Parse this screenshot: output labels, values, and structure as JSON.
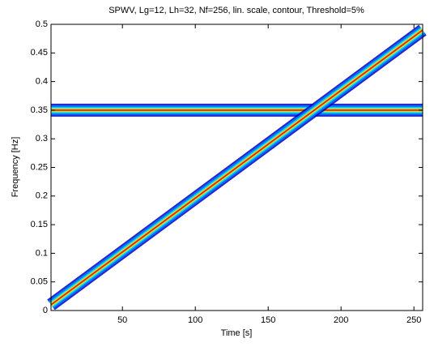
{
  "chart_data": {
    "type": "contour",
    "title": "SPWV, Lg=12, Lh=32, Nf=256, lin. scale, contour, Threshold=5%",
    "xlabel": "Time [s]",
    "ylabel": "Frequency [Hz]",
    "xlim": [
      1,
      256
    ],
    "ylim": [
      0,
      0.5
    ],
    "xticks": [
      50,
      100,
      150,
      200,
      250
    ],
    "yticks": [
      0,
      0.05,
      0.1,
      0.15,
      0.2,
      0.25,
      0.3,
      0.35,
      0.4,
      0.45,
      0.5
    ],
    "ridges": [
      {
        "x": [
          1,
          256
        ],
        "y": [
          0.35,
          0.35
        ]
      },
      {
        "x": [
          1,
          256
        ],
        "y": [
          0.01,
          0.49
        ]
      }
    ],
    "colors": [
      "#0000c8",
      "#0080ff",
      "#00e0ff",
      "#c0ff40",
      "#ffa000",
      "#e00000"
    ]
  }
}
